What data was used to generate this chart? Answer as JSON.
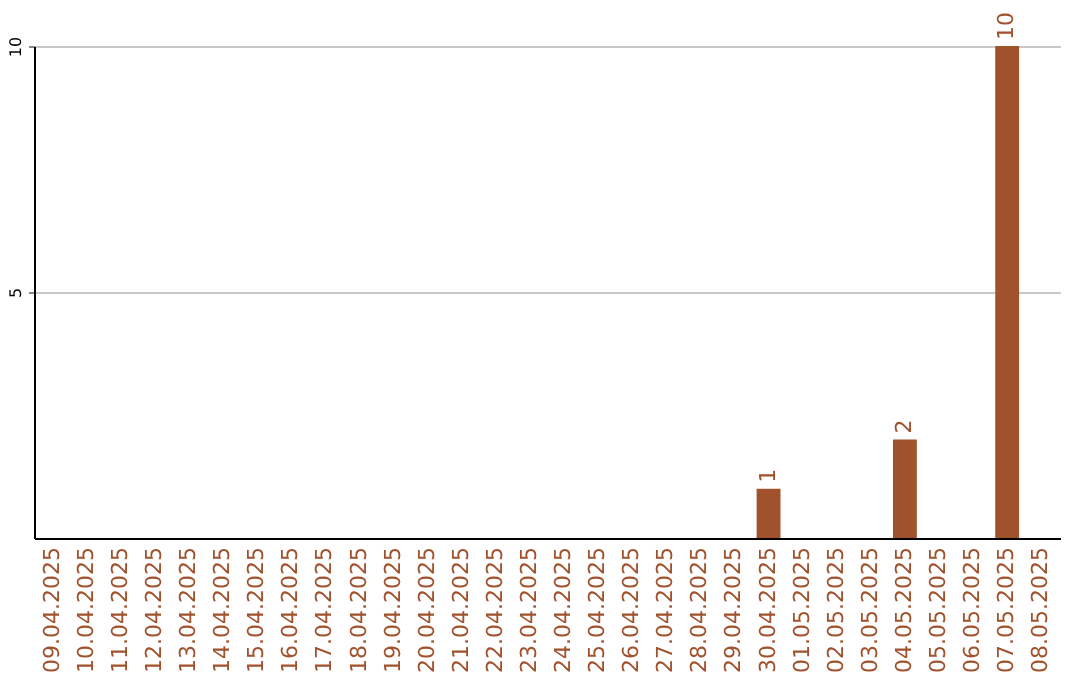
{
  "chart_data": {
    "type": "bar",
    "categories": [
      "09.04.2025",
      "10.04.2025",
      "11.04.2025",
      "12.04.2025",
      "13.04.2025",
      "14.04.2025",
      "15.04.2025",
      "16.04.2025",
      "17.04.2025",
      "18.04.2025",
      "19.04.2025",
      "20.04.2025",
      "21.04.2025",
      "22.04.2025",
      "23.04.2025",
      "24.04.2025",
      "25.04.2025",
      "26.04.2025",
      "27.04.2025",
      "28.04.2025",
      "29.04.2025",
      "30.04.2025",
      "01.05.2025",
      "02.05.2025",
      "03.05.2025",
      "04.05.2025",
      "05.05.2025",
      "06.05.2025",
      "07.05.2025",
      "08.05.2025"
    ],
    "values": [
      0,
      0,
      0,
      0,
      0,
      0,
      0,
      0,
      0,
      0,
      0,
      0,
      0,
      0,
      0,
      0,
      0,
      0,
      0,
      0,
      0,
      1,
      0,
      0,
      0,
      2,
      0,
      0,
      10,
      0
    ],
    "value_labels": [
      null,
      null,
      null,
      null,
      null,
      null,
      null,
      null,
      null,
      null,
      null,
      null,
      null,
      null,
      null,
      null,
      null,
      null,
      null,
      null,
      null,
      "1",
      null,
      null,
      null,
      "2",
      null,
      null,
      "10",
      null
    ],
    "color": "#a0522d",
    "ylim": [
      0,
      10
    ],
    "yticks": [
      5,
      10
    ],
    "grid": "y"
  }
}
